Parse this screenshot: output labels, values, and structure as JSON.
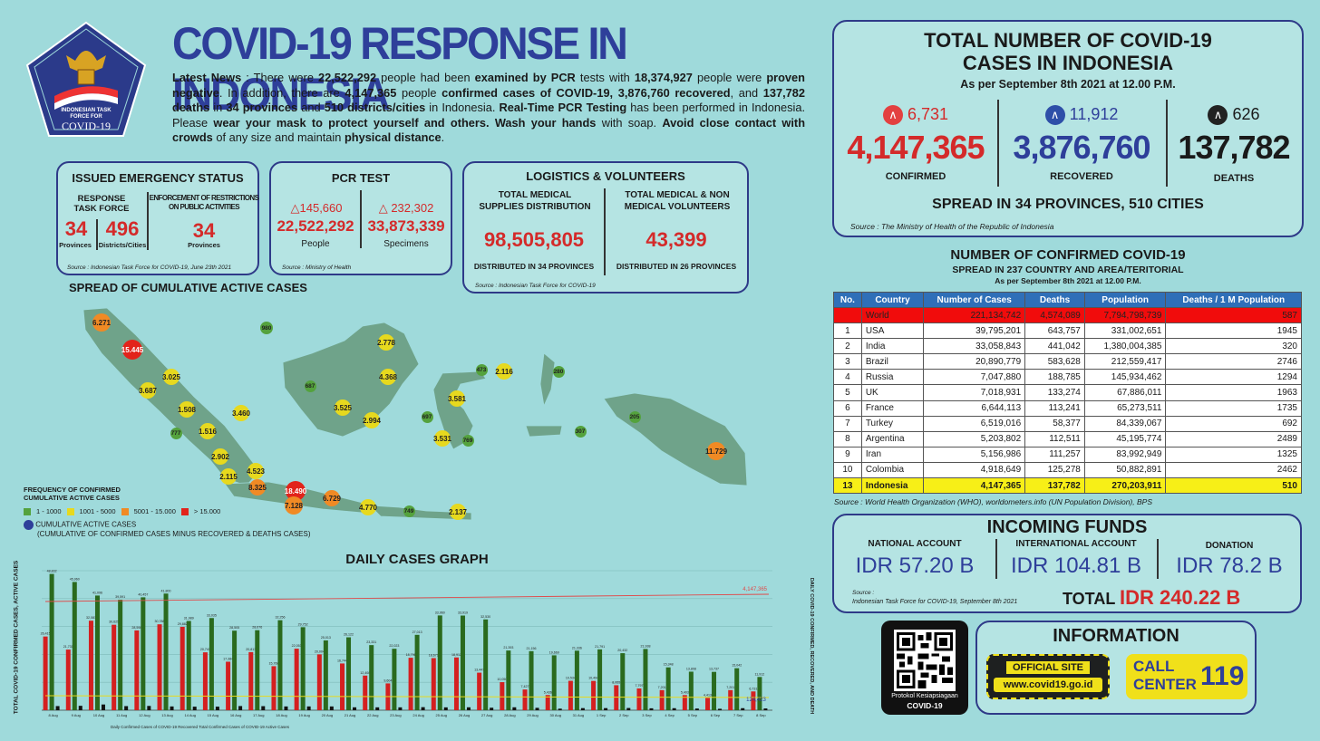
{
  "title": "COVID-19 RESPONSE IN INDONESIA",
  "logo": {
    "line1": "INDONESIAN TASK",
    "line2": "FORCE FOR",
    "line3": "COVID-19"
  },
  "news": {
    "p1": "Latest News",
    "p2": " : There were ",
    "p3": "22,522,292",
    "p4": " people had been ",
    "p5": "examined by PCR",
    "p6": " tests with ",
    "p7": "18,374,927",
    "p8": " people were ",
    "p9": "proven negative",
    "p10": ". In addition, there are ",
    "p11": "4,147,365",
    "p12": " people ",
    "p13": "confirmed cases of COVID-19, 3,876,760 recovered",
    "p14": ", and ",
    "p15": "137,782 deaths",
    "p16": " in ",
    "p17": "34 provinces",
    "p18": " and ",
    "p19": "510 districts/cities",
    "p20": " in Indonesia. ",
    "p21": "Real-Time PCR Testing",
    "p22": " has been performed in Indonesia. Please ",
    "p23": "wear your mask to protect yourself and others. Wash your hands",
    "p24": " with soap. ",
    "p25": "Avoid close contact with crowds",
    "p26": " of any size and maintain ",
    "p27": "physical distance",
    "p28": "."
  },
  "emergency": {
    "title": "ISSUED EMERGENCY STATUS",
    "col1": "RESPONSE TASK FORCE",
    "col2": "ENFORCEMENT OF RESTRICTIONS ON PUBLIC ACTIVITIES",
    "v1": "34",
    "l1": "Provinces",
    "v2": "496",
    "l2": "Districts/Cities",
    "v3": "34",
    "l3": "Provinces",
    "source": "Source : Indonesian Task Force for COVID-19, June 23th 2021"
  },
  "pcr": {
    "title": "PCR TEST",
    "d1": "145,660",
    "d2": "232,302",
    "v1": "22,522,292",
    "v2": "33,873,339",
    "l1": "People",
    "l2": "Specimens",
    "source": "Source : Ministry of Health"
  },
  "logistics": {
    "title": "LOGISTICS & VOLUNTEERS",
    "h1": "TOTAL MEDICAL SUPPLIES DISTRIBUTION",
    "h2": "TOTAL MEDICAL & NON MEDICAL VOLUNTEERS",
    "v1": "98,505,805",
    "v2": "43,399",
    "f1": "DISTRIBUTED IN 34 PROVINCES",
    "f2": "DISTRIBUTED IN 26 PROVINCES",
    "source": "Source : Indonesian Task Force for COVID-19"
  },
  "total": {
    "title1": "TOTAL NUMBER OF COVID-19",
    "title2": "CASES IN INDONESIA",
    "asof": "As per September 8th 2021 at 12.00 P.M.",
    "dc": "6,731",
    "dr": "11,912",
    "dd": "626",
    "confirmed": "4,147,365",
    "recovered": "3,876,760",
    "deaths": "137,782",
    "lc": "CONFIRMED",
    "lr": "RECOVERED",
    "ld": "DEATHS",
    "spread": "SPREAD IN 34 PROVINCES, 510 CITIES",
    "source": "Source : The Ministry of Health of the Republic of Indonesia"
  },
  "world": {
    "title": "NUMBER OF CONFIRMED COVID-19",
    "sub": "SPREAD IN 237 COUNTRY AND AREA/TERITORIAL",
    "asof": "As per September 8th 2021 at 12.00 P.M.",
    "headers": [
      "No.",
      "Country",
      "Number of Cases",
      "Deaths",
      "Population",
      "Deaths / 1 M Population"
    ],
    "rows": [
      [
        "",
        "World",
        "221,134,742",
        "4,574,089",
        "7,794,798,739",
        "587"
      ],
      [
        "1",
        "USA",
        "39,795,201",
        "643,757",
        "331,002,651",
        "1945"
      ],
      [
        "2",
        "India",
        "33,058,843",
        "441,042",
        "1,380,004,385",
        "320"
      ],
      [
        "3",
        "Brazil",
        "20,890,779",
        "583,628",
        "212,559,417",
        "2746"
      ],
      [
        "4",
        "Russia",
        "7,047,880",
        "188,785",
        "145,934,462",
        "1294"
      ],
      [
        "5",
        "UK",
        "7,018,931",
        "133,274",
        "67,886,011",
        "1963"
      ],
      [
        "6",
        "France",
        "6,644,113",
        "113,241",
        "65,273,511",
        "1735"
      ],
      [
        "7",
        "Turkey",
        "6,519,016",
        "58,377",
        "84,339,067",
        "692"
      ],
      [
        "8",
        "Argentina",
        "5,203,802",
        "112,511",
        "45,195,774",
        "2489"
      ],
      [
        "9",
        "Iran",
        "5,156,986",
        "111,257",
        "83,992,949",
        "1325"
      ],
      [
        "10",
        "Colombia",
        "4,918,649",
        "125,278",
        "50,882,891",
        "2462"
      ],
      [
        "13",
        "Indonesia",
        "4,147,365",
        "137,782",
        "270,203,911",
        "510"
      ]
    ],
    "source": "Source : World Health Organization (WHO), worldometers.info (UN Population Division), BPS"
  },
  "funds": {
    "title": "INCOMING FUNDS",
    "h1": "NATIONAL ACCOUNT",
    "h2": "INTERNATIONAL ACCOUNT",
    "h3": "DONATION",
    "v1": "IDR 57.20 B",
    "v2": "IDR 104.81 B",
    "v3": "IDR 78.2 B",
    "src1": "Source :",
    "src2": "Indonesian Task Force for COVID-19, September 8th 2021",
    "total_label": "TOTAL",
    "total": "IDR 240.22 B"
  },
  "info": {
    "qr_caption1": "Protokol Kesiapsiagaan",
    "qr_caption2": "COVID-19",
    "title": "INFORMATION",
    "site1": "OFFICIAL SITE",
    "site2": "www.covid19.go.id",
    "call1": "CALL",
    "call2": "CENTER",
    "call3": "119"
  },
  "map": {
    "title": "SPREAD OF CUMULATIVE ACTIVE CASES",
    "legend_title1": "FREQUENCY OF CONFIRMED",
    "legend_title2": "CUMULATIVE ACTIVE CASES",
    "lg1": "1 - 1000",
    "lg2": "1001 - 5000",
    "lg3": "5001 - 15.000",
    "lg4": "> 15.000",
    "lg5": "CUMULATIVE ACTIVE CASES",
    "lg6": "(CUMULATIVE OF CONFIRMED CASES MINUS RECOVERED & DEATHS CASES)",
    "points": [
      [
        "6.271",
        "o"
      ],
      [
        "15.445",
        "r"
      ],
      [
        "980",
        "g"
      ],
      [
        "2.778",
        "y"
      ],
      [
        "3.025",
        "y"
      ],
      [
        "4.368",
        "y"
      ],
      [
        "687",
        "g"
      ],
      [
        "3.687",
        "y"
      ],
      [
        "1.508",
        "y"
      ],
      [
        "3.460",
        "y"
      ],
      [
        "3.525",
        "y"
      ],
      [
        "473",
        "g"
      ],
      [
        "2.116",
        "y"
      ],
      [
        "280",
        "g"
      ],
      [
        "3.581",
        "y"
      ],
      [
        "697",
        "g"
      ],
      [
        "777",
        "g"
      ],
      [
        "1.516",
        "y"
      ],
      [
        "2.994",
        "y"
      ],
      [
        "205",
        "g"
      ],
      [
        "3.531",
        "y"
      ],
      [
        "769",
        "g"
      ],
      [
        "307",
        "g"
      ],
      [
        "2.902",
        "y"
      ],
      [
        "11.729",
        "o"
      ],
      [
        "4.523",
        "y"
      ],
      [
        "2.115",
        "y"
      ],
      [
        "8.325",
        "o"
      ],
      [
        "18.490",
        "r"
      ],
      [
        "7.128",
        "o"
      ],
      [
        "6.729",
        "o"
      ],
      [
        "4.770",
        "y"
      ],
      [
        "749",
        "g"
      ],
      [
        "2.137",
        "y"
      ]
    ]
  },
  "chart_data": {
    "type": "bar",
    "title": "DAILY CASES GRAPH",
    "ylabel": "TOTAL COVID-19 CONFIRMED CASES, ACTIVE CASES",
    "ylabel2": "DAILY COVID-19 CONFIRMED, RECOVERED, AND DEATH",
    "ylim": [
      0,
      50000
    ],
    "categories": [
      "8 Aug",
      "9 Aug",
      "10 Aug",
      "11 Aug",
      "12 Aug",
      "13 Aug",
      "14 Aug",
      "15 Aug",
      "16 Aug",
      "17 Aug",
      "18 Aug",
      "19 Aug",
      "20 Aug",
      "21 Aug",
      "22 Aug",
      "23 Aug",
      "24 Aug",
      "25 Aug",
      "26 Aug",
      "27 Aug",
      "28 Aug",
      "29 Aug",
      "30 Aug",
      "31 Aug",
      "1 Sep",
      "2 Sep",
      "3 Sep",
      "4 Sep",
      "5 Sep",
      "6 Sep",
      "7 Sep",
      "8 Sep"
    ],
    "series": [
      {
        "name": "Daily Confirmed Cases of COVID-19",
        "color": "#d42020",
        "values": [
          26415,
          21731,
          32081,
          30625,
          28598,
          30788,
          29882,
          20741,
          17384,
          20813,
          15768,
          22053,
          20004,
          16744,
          12408,
          9604,
          18796,
          18671,
          18912,
          13447,
          10050,
          7427,
          5436,
          10534,
          10494,
          8955,
          7797,
          7201,
          5403,
          4413,
          7201,
          6731
        ]
      },
      {
        "name": "Recovered",
        "color": "#2a6a1e",
        "values": [
          48832,
          45960,
          41096,
          39591,
          40457,
          41800,
          31989,
          33035,
          28505,
          28676,
          32256,
          29752,
          25013,
          26122,
          23331,
          22023,
          27013,
          33960,
          33919,
          32530,
          21393,
          21156,
          19669,
          21336,
          21791,
          20432,
          21938,
          15348,
          13808,
          13737,
          15042,
          11912
        ]
      },
      {
        "name": "Death",
        "color": "#111111",
        "values": [
          1475,
          1579,
          2048,
          1466,
          1534,
          1348,
          1270,
          1277,
          1492,
          1450,
          1349,
          1355,
          1348,
          1041,
          1030,
          1030,
          1091,
          1022,
          1045,
          887,
          1050,
          850,
          554,
          750,
          752,
          792,
          685,
          726,
          600,
          508,
          727,
          626
        ]
      }
    ],
    "line": {
      "name": "Total Confirmed Cases of COVID-19",
      "start": "3,686,740",
      "end": "4,147,365"
    },
    "active_end": "124,423",
    "legend": [
      "Daily Confirmed Cases of COVID-19",
      "Recovered",
      "Total Confirmed Cases of COVID-19",
      "Active Cases"
    ]
  }
}
